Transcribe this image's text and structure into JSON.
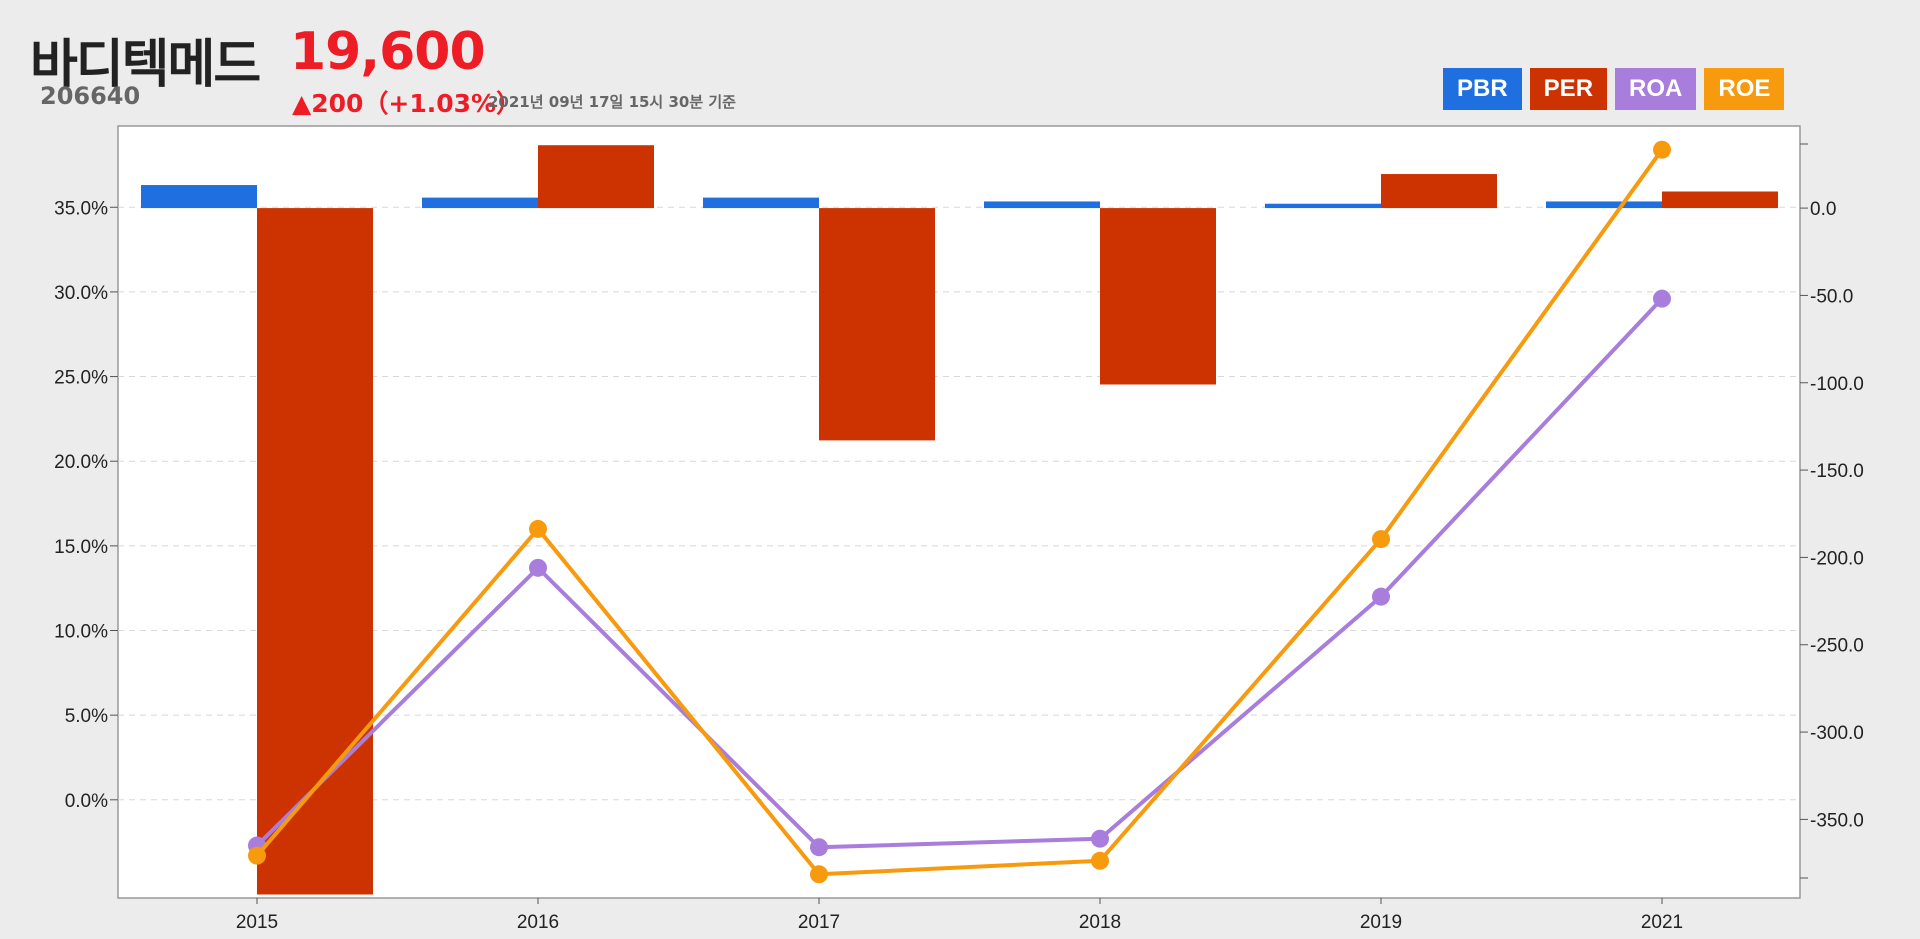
{
  "header": {
    "stock_name": "바디텍메드",
    "stock_code": "206640",
    "price": "19,600",
    "change": "▲200（+1.03%）",
    "as_of": "2021년 09년 17일 15시 30분 기준"
  },
  "legend": [
    {
      "label": "PBR",
      "color": "#1f6fe0"
    },
    {
      "label": "PER",
      "color": "#cc3300"
    },
    {
      "label": "ROA",
      "color": "#a87ddc"
    },
    {
      "label": "ROE",
      "color": "#f79a0e"
    }
  ],
  "chart_data": {
    "type": "bar+line",
    "categories": [
      "2015",
      "2016",
      "2017",
      "2018",
      "2019",
      "2021"
    ],
    "left_axis": {
      "ticks": [
        "35.0%",
        "30.0%",
        "25.0%",
        "20.0%",
        "15.0%",
        "10.0%",
        "5.0%",
        "0.0%"
      ],
      "tick_values": [
        35,
        30,
        25,
        20,
        15,
        10,
        5,
        0
      ],
      "range": [
        -5.8,
        39.8
      ]
    },
    "right_axis": {
      "ticks": [
        "0.0",
        "-50.0",
        "-100.0",
        "-150.0",
        "-200.0",
        "-250.0",
        "-300.0",
        "-350.0"
      ],
      "tick_values": [
        0,
        -50,
        -100,
        -150,
        -200,
        -250,
        -300,
        -350
      ],
      "range": [
        -395,
        47
      ]
    },
    "grid": true,
    "legend_position": "top-right",
    "series": [
      {
        "name": "PBR",
        "type": "bar",
        "axis": "right",
        "color": "#1f6fe0",
        "values": [
          13.2,
          6.0,
          6.0,
          3.8,
          2.5,
          3.8
        ]
      },
      {
        "name": "PER",
        "type": "bar",
        "axis": "right",
        "color": "#cc3300",
        "values": [
          -393,
          36.0,
          -133,
          -101,
          19.5,
          9.5
        ]
      },
      {
        "name": "ROA",
        "type": "line",
        "axis": "left",
        "color": "#a87ddc",
        "values": [
          -2.7,
          13.7,
          -2.8,
          -2.3,
          12.0,
          29.6
        ]
      },
      {
        "name": "ROE",
        "type": "line",
        "axis": "left",
        "color": "#f79a0e",
        "values": [
          -3.3,
          16.0,
          -4.4,
          -3.6,
          15.4,
          38.4
        ]
      }
    ]
  }
}
